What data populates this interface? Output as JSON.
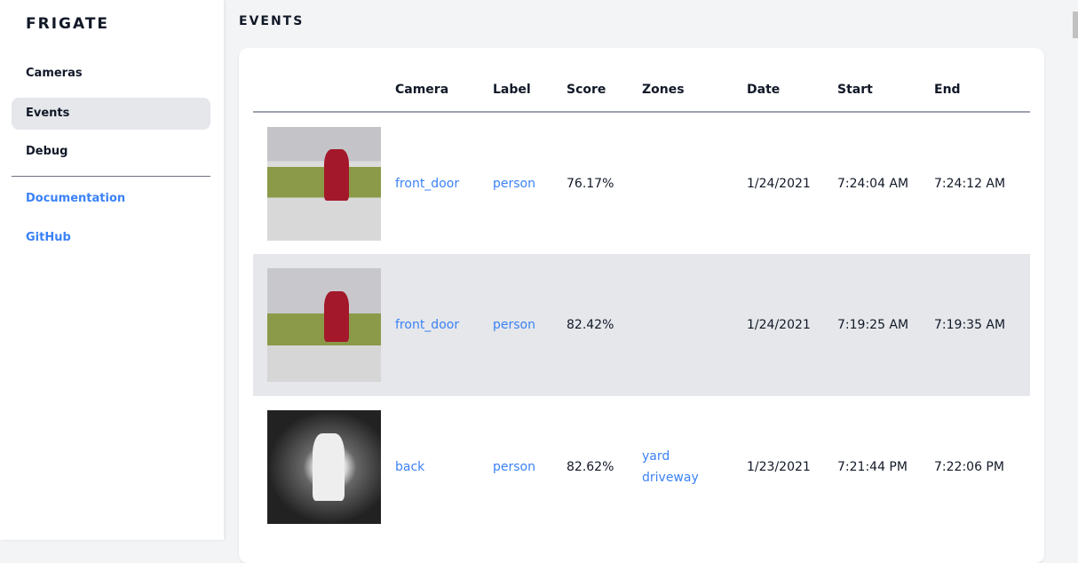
{
  "sidebar": {
    "brand": "FRIGATE",
    "items": [
      {
        "label": "Cameras"
      },
      {
        "label": "Events",
        "active": true
      },
      {
        "label": "Debug"
      }
    ],
    "links": [
      {
        "label": "Documentation"
      },
      {
        "label": "GitHub"
      }
    ]
  },
  "page": {
    "title": "EVENTS"
  },
  "table": {
    "headers": [
      "",
      "Camera",
      "Label",
      "Score",
      "Zones",
      "Date",
      "Start",
      "End"
    ],
    "rows": [
      {
        "camera": "front_door",
        "label": "person",
        "score": "76.17%",
        "zones": [
          "",
          ""
        ],
        "date": "1/24/2021",
        "start": "7:24:04 AM",
        "end": "7:24:12 AM"
      },
      {
        "camera": "front_door",
        "label": "person",
        "score": "82.42%",
        "zones": [
          "",
          ""
        ],
        "date": "1/24/2021",
        "start": "7:19:25 AM",
        "end": "7:19:35 AM"
      },
      {
        "camera": "back",
        "label": "person",
        "score": "82.62%",
        "zones": [
          "yard",
          "driveway"
        ],
        "date": "1/23/2021",
        "start": "7:21:44 PM",
        "end": "7:22:06 PM"
      }
    ]
  },
  "colors": {
    "accent": "#3b82f6",
    "active_bg": "#e5e7eb"
  }
}
